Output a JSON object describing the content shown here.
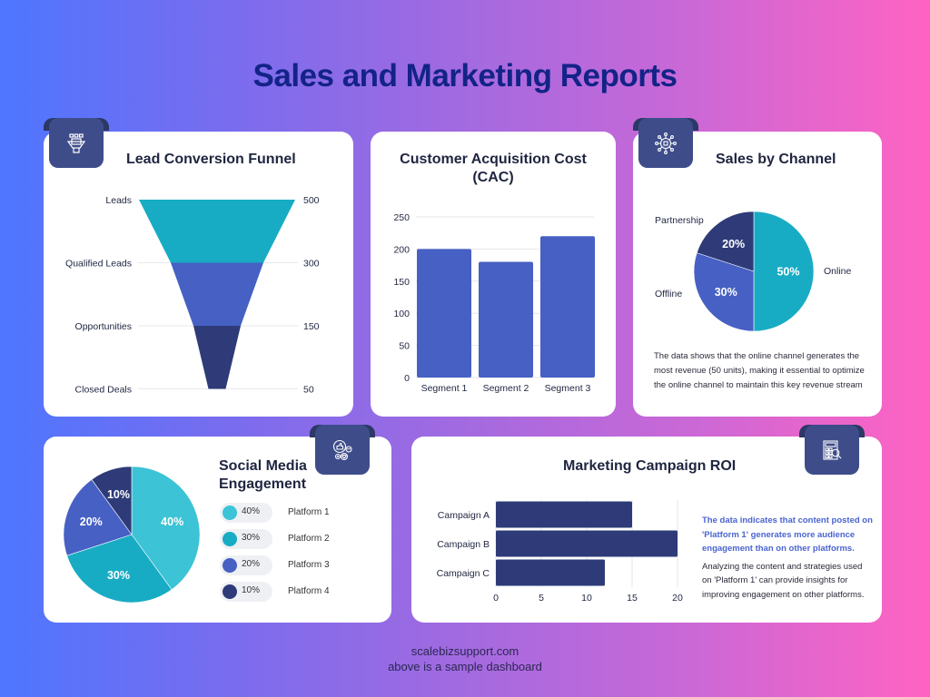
{
  "page": {
    "title": "Sales and Marketing Reports",
    "footer_site": "scalebizsupport.com",
    "footer_note": "above is a sample dashboard",
    "colors": {
      "title": "#132387",
      "teal": "#18acc4",
      "light_teal": "#3cc3d6",
      "blue": "#4660c4",
      "navy": "#2e3b78",
      "icon_tab": "#3e4d8a"
    }
  },
  "chart_data": [
    {
      "id": "funnel",
      "type": "funnel",
      "title": "Lead Conversion Funnel",
      "icon": "funnel-people-icon",
      "categories": [
        "Leads",
        "Qualified Leads",
        "Opportunities",
        "Closed Deals"
      ],
      "values": [
        500,
        300,
        150,
        50
      ],
      "value_labels": [
        "500",
        "300",
        "150",
        "50"
      ]
    },
    {
      "id": "cac",
      "type": "bar",
      "title_line1": "Customer Acquisition Cost",
      "title_line2": "(CAC)",
      "categories": [
        "Segment 1",
        "Segment 2",
        "Segment 3"
      ],
      "values": [
        200,
        180,
        220
      ],
      "ylim": [
        0,
        250
      ],
      "yticks": [
        "0",
        "50",
        "100",
        "150",
        "200",
        "250"
      ],
      "grid": true
    },
    {
      "id": "channel",
      "type": "pie",
      "title": "Sales by Channel",
      "icon": "network-hub-icon",
      "slices": [
        {
          "name": "Online",
          "value": 50,
          "label": "50%",
          "color": "#18acc4"
        },
        {
          "name": "Offline",
          "value": 30,
          "label": "30%",
          "color": "#4660c4"
        },
        {
          "name": "Partnership",
          "value": 20,
          "label": "20%",
          "color": "#2e3b78"
        }
      ],
      "note": [
        "The data shows that the online channel generates the",
        "most revenue (50 units), making it essential to optimize",
        "the online channel to maintain this key revenue stream"
      ]
    },
    {
      "id": "social",
      "type": "pie",
      "title_line1": "Social Media",
      "title_line2": "Engagement",
      "icon": "social-reactions-icon",
      "slices": [
        {
          "name": "Platform 1",
          "value": 40,
          "label": "40%",
          "color": "#3cc3d6"
        },
        {
          "name": "Platform 2",
          "value": 30,
          "label": "30%",
          "color": "#18acc4"
        },
        {
          "name": "Platform 3",
          "value": 20,
          "label": "20%",
          "color": "#4660c4"
        },
        {
          "name": "Platform 4",
          "value": 10,
          "label": "10%",
          "color": "#2e3b78"
        }
      ]
    },
    {
      "id": "roi",
      "type": "bar-horizontal",
      "title": "Marketing Campaign ROI",
      "icon": "calculator-search-icon",
      "categories": [
        "Campaign A",
        "Campaign B",
        "Campaign C"
      ],
      "values": [
        15,
        20,
        12
      ],
      "xlim": [
        0,
        20
      ],
      "xticks": [
        "0",
        "5",
        "10",
        "15",
        "20"
      ],
      "grid": true,
      "note_highlight": [
        "The data indicates that content posted on",
        "'Platform 1' generates more audience",
        "engagement than on other platforms."
      ],
      "note": [
        "Analyzing the content and strategies used",
        "on 'Platform 1' can provide insights for",
        "improving engagement on other platforms."
      ]
    }
  ]
}
